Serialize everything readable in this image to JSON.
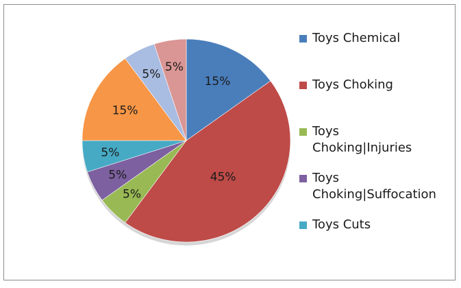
{
  "chart_data": {
    "type": "pie",
    "title": "",
    "series": [
      {
        "name": "Toys Chemical",
        "value": 15,
        "label": "15%",
        "color": "#4A7EBB"
      },
      {
        "name": "Toys Choking",
        "value": 45,
        "label": "45%",
        "color": "#BE4B48"
      },
      {
        "name": "Toys Choking|Injuries",
        "value": 5,
        "label": "5%",
        "color": "#98B954",
        "legend_lines": [
          "Toys",
          "Choking|Injuries"
        ]
      },
      {
        "name": "Toys Choking|Suffocation",
        "value": 5,
        "label": "5%",
        "color": "#7D60A0",
        "legend_lines": [
          "Toys",
          "Choking|Suffocation"
        ]
      },
      {
        "name": "Toys Cuts",
        "value": 5,
        "label": "5%",
        "color": "#46AAC5"
      },
      {
        "name": "",
        "value": 15,
        "label": "15%",
        "color": "#F79646"
      },
      {
        "name": "",
        "value": 5,
        "label": "5%",
        "color": "#A9BCE2"
      },
      {
        "name": "",
        "value": 5,
        "label": "5%",
        "color": "#DA9694"
      }
    ],
    "legend": {
      "placement": "right",
      "entries": [
        {
          "lines": [
            "Toys Chemical"
          ],
          "color": "#4A7EBB"
        },
        {
          "lines": [
            "Toys Choking"
          ],
          "color": "#BE4B48"
        },
        {
          "lines": [
            "Toys",
            "Choking|Injuries"
          ],
          "color": "#98B954"
        },
        {
          "lines": [
            "Toys",
            "Choking|Suffocation"
          ],
          "color": "#7D60A0"
        },
        {
          "lines": [
            "Toys Cuts"
          ],
          "color": "#46AAC5"
        }
      ]
    }
  }
}
